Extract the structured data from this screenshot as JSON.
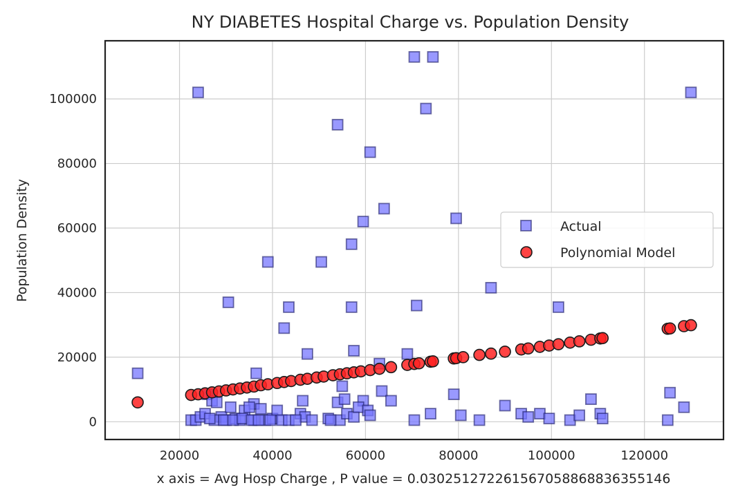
{
  "chart_data": {
    "type": "scatter",
    "title": "NY DIABETES Hospital Charge vs. Population Density",
    "xlabel": "x axis = Avg Hosp Charge , P value = 0.030251272261567058868836355146",
    "ylabel": "Population Density",
    "xlim": [
      4000,
      137000
    ],
    "ylim": [
      -5500,
      118000
    ],
    "xticks": [
      20000,
      40000,
      60000,
      80000,
      100000,
      120000
    ],
    "yticks": [
      0,
      20000,
      40000,
      60000,
      80000,
      100000
    ],
    "grid": true,
    "legend_position": "center-right",
    "series": [
      {
        "name": "Actual",
        "marker": "square",
        "color": "#7777ff",
        "edge_color": "#1a1a66",
        "points": [
          [
            11000,
            15000
          ],
          [
            24000,
            102000
          ],
          [
            70500,
            113000
          ],
          [
            74500,
            113000
          ],
          [
            73000,
            97000
          ],
          [
            130000,
            102000
          ],
          [
            54000,
            92000
          ],
          [
            61000,
            83500
          ],
          [
            64000,
            66000
          ],
          [
            59500,
            62000
          ],
          [
            79500,
            63000
          ],
          [
            57000,
            55000
          ],
          [
            39000,
            49500
          ],
          [
            50500,
            49500
          ],
          [
            87000,
            41500
          ],
          [
            30500,
            37000
          ],
          [
            43500,
            35500
          ],
          [
            57000,
            35500
          ],
          [
            71000,
            36000
          ],
          [
            101500,
            35500
          ],
          [
            42500,
            29000
          ],
          [
            47500,
            21000
          ],
          [
            57500,
            22000
          ],
          [
            69000,
            21000
          ],
          [
            63000,
            18000
          ],
          [
            36500,
            15000
          ],
          [
            55000,
            11000
          ],
          [
            26000,
            8500
          ],
          [
            27000,
            6500
          ],
          [
            28000,
            6000
          ],
          [
            36000,
            5500
          ],
          [
            46500,
            6500
          ],
          [
            54000,
            6000
          ],
          [
            55500,
            7000
          ],
          [
            59500,
            6500
          ],
          [
            63500,
            9500
          ],
          [
            65500,
            6500
          ],
          [
            79000,
            8500
          ],
          [
            108500,
            7000
          ],
          [
            125500,
            9000
          ],
          [
            128500,
            4500
          ],
          [
            22500,
            500
          ],
          [
            23500,
            500
          ],
          [
            24500,
            1500
          ],
          [
            25500,
            2500
          ],
          [
            29000,
            1500
          ],
          [
            30000,
            500
          ],
          [
            31000,
            4500
          ],
          [
            32000,
            1000
          ],
          [
            33000,
            500
          ],
          [
            34000,
            3500
          ],
          [
            35000,
            4500
          ],
          [
            36000,
            500
          ],
          [
            37500,
            4000
          ],
          [
            38500,
            500
          ],
          [
            40000,
            1000
          ],
          [
            41000,
            3500
          ],
          [
            42000,
            500
          ],
          [
            43500,
            500
          ],
          [
            46000,
            2500
          ],
          [
            47000,
            1500
          ],
          [
            48500,
            500
          ],
          [
            52000,
            1000
          ],
          [
            54500,
            500
          ],
          [
            56000,
            2500
          ],
          [
            57500,
            1500
          ],
          [
            58500,
            4500
          ],
          [
            60500,
            3500
          ],
          [
            61000,
            2000
          ],
          [
            70500,
            500
          ],
          [
            74000,
            2500
          ],
          [
            80500,
            2000
          ],
          [
            84500,
            500
          ],
          [
            90000,
            5000
          ],
          [
            93500,
            2500
          ],
          [
            95000,
            1500
          ],
          [
            97500,
            2500
          ],
          [
            99500,
            1000
          ],
          [
            104000,
            500
          ],
          [
            106000,
            2000
          ],
          [
            110500,
            2500
          ],
          [
            111000,
            1000
          ],
          [
            125000,
            500
          ],
          [
            27500,
            500
          ],
          [
            26500,
            1000
          ],
          [
            29500,
            500
          ],
          [
            31500,
            500
          ],
          [
            33500,
            1000
          ],
          [
            35500,
            500
          ],
          [
            37000,
            500
          ],
          [
            39500,
            500
          ],
          [
            45000,
            500
          ],
          [
            52500,
            500
          ]
        ]
      },
      {
        "name": "Polynomial Model",
        "marker": "circle",
        "color": "#ff2222",
        "edge_color": "#1a1a1a",
        "points": [
          [
            11000,
            6000
          ],
          [
            22500,
            8300
          ],
          [
            24000,
            8500
          ],
          [
            25500,
            8800
          ],
          [
            27000,
            9100
          ],
          [
            28500,
            9400
          ],
          [
            30000,
            9700
          ],
          [
            31500,
            10000
          ],
          [
            33000,
            10300
          ],
          [
            34500,
            10600
          ],
          [
            36000,
            10900
          ],
          [
            37500,
            11300
          ],
          [
            39000,
            11600
          ],
          [
            41000,
            12000
          ],
          [
            42500,
            12300
          ],
          [
            44000,
            12600
          ],
          [
            46000,
            13000
          ],
          [
            47500,
            13300
          ],
          [
            49500,
            13700
          ],
          [
            51000,
            14000
          ],
          [
            53000,
            14400
          ],
          [
            54500,
            14700
          ],
          [
            56000,
            15000
          ],
          [
            57500,
            15300
          ],
          [
            59000,
            15600
          ],
          [
            61000,
            16000
          ],
          [
            63000,
            16400
          ],
          [
            65500,
            16900
          ],
          [
            69000,
            17600
          ],
          [
            70500,
            17900
          ],
          [
            71500,
            18100
          ],
          [
            74000,
            18600
          ],
          [
            74500,
            18700
          ],
          [
            79000,
            19600
          ],
          [
            79500,
            19700
          ],
          [
            81000,
            20000
          ],
          [
            84500,
            20700
          ],
          [
            87000,
            21100
          ],
          [
            90000,
            21700
          ],
          [
            93500,
            22400
          ],
          [
            95000,
            22700
          ],
          [
            97500,
            23200
          ],
          [
            99500,
            23600
          ],
          [
            101500,
            24000
          ],
          [
            104000,
            24500
          ],
          [
            106000,
            24900
          ],
          [
            108500,
            25400
          ],
          [
            110500,
            25800
          ],
          [
            111000,
            25900
          ],
          [
            125000,
            28800
          ],
          [
            125500,
            28900
          ],
          [
            128500,
            29600
          ],
          [
            130000,
            29900
          ]
        ]
      }
    ]
  }
}
